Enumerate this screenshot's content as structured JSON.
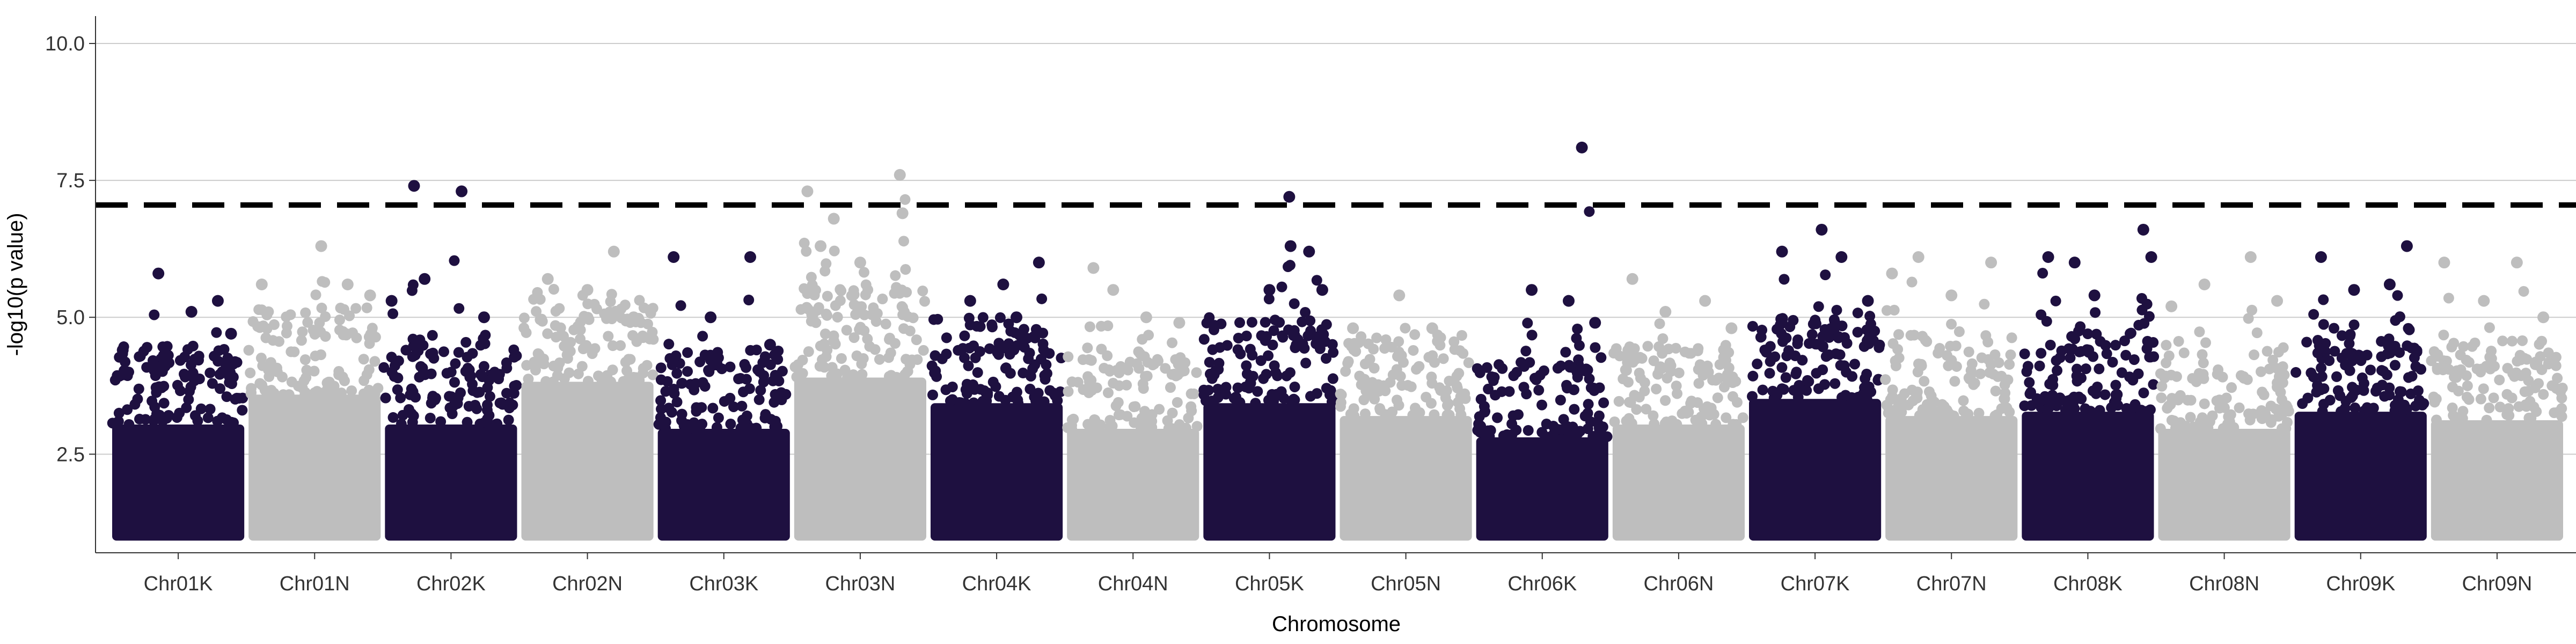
{
  "chart_data": {
    "type": "scatter",
    "title": "",
    "xlabel": "Chromosome",
    "ylabel": "-log10(p value)",
    "ylim": [
      0.7,
      10.5
    ],
    "y_ticks": [
      {
        "value": 2.5,
        "label": "2.5"
      },
      {
        "value": 5.0,
        "label": "5.0"
      },
      {
        "value": 7.5,
        "label": "7.5"
      },
      {
        "value": 10.0,
        "label": "10.0"
      }
    ],
    "grid": "horizontal major lines",
    "threshold": 7.05,
    "colors": {
      "odd": "#1e1040",
      "even": "#bebebe",
      "threshold": "#000000",
      "grid": "#cccccc"
    },
    "categories": [
      "Chr01K",
      "Chr01N",
      "Chr02K",
      "Chr02N",
      "Chr03K",
      "Chr03N",
      "Chr04K",
      "Chr04N",
      "Chr05K",
      "Chr05N",
      "Chr06K",
      "Chr06N",
      "Chr07K",
      "Chr07N",
      "Chr08K",
      "Chr08N",
      "Chr09K",
      "Chr09N"
    ],
    "series": [
      {
        "chromosome": "Chr01K",
        "base": 3.9,
        "peaks": [
          [
            0.08,
            4.4
          ],
          [
            0.35,
            5.8
          ],
          [
            0.6,
            5.1
          ],
          [
            0.8,
            5.3
          ],
          [
            0.9,
            4.7
          ]
        ]
      },
      {
        "chromosome": "Chr01N",
        "base": 4.6,
        "peaks": [
          [
            0.1,
            5.6
          ],
          [
            0.55,
            6.3
          ],
          [
            0.75,
            5.6
          ],
          [
            0.92,
            5.4
          ]
        ]
      },
      {
        "chromosome": "Chr02K",
        "base": 3.9,
        "peaks": [
          [
            0.05,
            5.3
          ],
          [
            0.22,
            7.4
          ],
          [
            0.3,
            5.7
          ],
          [
            0.58,
            7.3
          ],
          [
            0.75,
            5.0
          ]
        ]
      },
      {
        "chromosome": "Chr02N",
        "base": 4.9,
        "peaks": [
          [
            0.2,
            5.7
          ],
          [
            0.5,
            5.5
          ],
          [
            0.7,
            6.2
          ],
          [
            0.85,
            5.0
          ]
        ]
      },
      {
        "chromosome": "Chr03K",
        "base": 3.8,
        "peaks": [
          [
            0.12,
            6.1
          ],
          [
            0.4,
            5.0
          ],
          [
            0.7,
            6.1
          ],
          [
            0.85,
            4.5
          ]
        ]
      },
      {
        "chromosome": "Chr03N",
        "base": 5.0,
        "peaks": [
          [
            0.1,
            7.3
          ],
          [
            0.2,
            6.3
          ],
          [
            0.3,
            6.8
          ],
          [
            0.8,
            7.6
          ],
          [
            0.82,
            6.9
          ],
          [
            0.5,
            6.0
          ]
        ]
      },
      {
        "chromosome": "Chr04K",
        "base": 4.4,
        "peaks": [
          [
            0.3,
            5.3
          ],
          [
            0.55,
            5.6
          ],
          [
            0.82,
            6.0
          ],
          [
            0.65,
            5.0
          ]
        ]
      },
      {
        "chromosome": "Chr04N",
        "base": 3.8,
        "peaks": [
          [
            0.2,
            5.9
          ],
          [
            0.35,
            5.5
          ],
          [
            0.6,
            5.0
          ],
          [
            0.85,
            4.9
          ]
        ]
      },
      {
        "chromosome": "Chr05K",
        "base": 4.4,
        "peaks": [
          [
            0.65,
            7.2
          ],
          [
            0.66,
            6.3
          ],
          [
            0.8,
            6.2
          ],
          [
            0.5,
            5.5
          ],
          [
            0.9,
            5.5
          ]
        ]
      },
      {
        "chromosome": "Chr05N",
        "base": 4.1,
        "peaks": [
          [
            0.1,
            4.8
          ],
          [
            0.45,
            5.4
          ],
          [
            0.7,
            4.8
          ]
        ]
      },
      {
        "chromosome": "Chr06K",
        "base": 3.6,
        "peaks": [
          [
            0.42,
            5.5
          ],
          [
            0.8,
            8.1
          ],
          [
            0.7,
            5.3
          ],
          [
            0.9,
            4.9
          ]
        ]
      },
      {
        "chromosome": "Chr06N",
        "base": 3.9,
        "peaks": [
          [
            0.15,
            5.7
          ],
          [
            0.4,
            5.1
          ],
          [
            0.7,
            5.3
          ],
          [
            0.9,
            4.8
          ]
        ]
      },
      {
        "chromosome": "Chr07K",
        "base": 4.5,
        "peaks": [
          [
            0.25,
            6.2
          ],
          [
            0.55,
            6.6
          ],
          [
            0.7,
            6.1
          ],
          [
            0.9,
            5.3
          ]
        ]
      },
      {
        "chromosome": "Chr07N",
        "base": 4.1,
        "peaks": [
          [
            0.05,
            5.8
          ],
          [
            0.25,
            6.1
          ],
          [
            0.5,
            5.4
          ],
          [
            0.8,
            6.0
          ]
        ]
      },
      {
        "chromosome": "Chr08K",
        "base": 4.2,
        "peaks": [
          [
            0.2,
            6.1
          ],
          [
            0.4,
            6.0
          ],
          [
            0.55,
            5.4
          ],
          [
            0.92,
            6.6
          ],
          [
            0.98,
            6.1
          ]
        ]
      },
      {
        "chromosome": "Chr08N",
        "base": 3.8,
        "peaks": [
          [
            0.1,
            5.2
          ],
          [
            0.35,
            5.6
          ],
          [
            0.7,
            6.1
          ],
          [
            0.9,
            5.3
          ]
        ]
      },
      {
        "chromosome": "Chr09K",
        "base": 4.2,
        "peaks": [
          [
            0.2,
            6.1
          ],
          [
            0.45,
            5.5
          ],
          [
            0.72,
            5.6
          ],
          [
            0.85,
            6.3
          ]
        ]
      },
      {
        "chromosome": "Chr09N",
        "base": 4.0,
        "peaks": [
          [
            0.1,
            6.0
          ],
          [
            0.4,
            5.3
          ],
          [
            0.65,
            6.0
          ],
          [
            0.85,
            5.0
          ]
        ]
      }
    ]
  }
}
